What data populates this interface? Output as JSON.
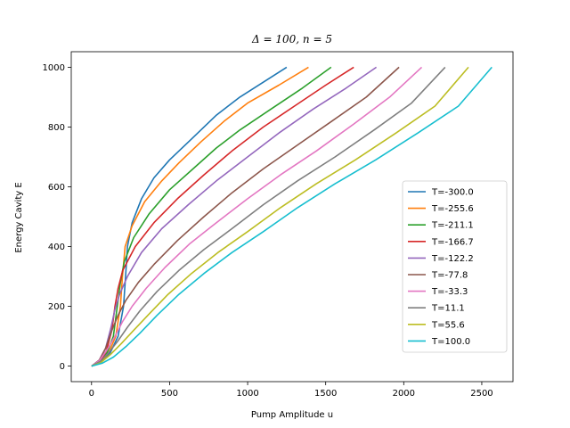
{
  "chart_data": {
    "type": "line",
    "title": "Δ = 100, n = 5",
    "xlabel": "Pump Amplitude u",
    "ylabel": "Energy Cavity E",
    "xlim": [
      -130,
      2700
    ],
    "ylim": [
      -52,
      1052
    ],
    "xticks": [
      0,
      500,
      1000,
      1500,
      2000,
      2500
    ],
    "yticks": [
      0,
      200,
      400,
      600,
      800,
      1000
    ],
    "grid": false,
    "legend_position": "lower-right",
    "series": [
      {
        "name": "T=-300.0",
        "color": "#1f77b4",
        "x": [
          0,
          60,
          120,
          170,
          205,
          218,
          230,
          260,
          320,
          400,
          500,
          640,
          800,
          950,
          1100,
          1250
        ],
        "y": [
          0,
          15,
          45,
          100,
          200,
          300,
          400,
          480,
          560,
          630,
          690,
          760,
          840,
          900,
          950,
          1000
        ]
      },
      {
        "name": "T=-255.6",
        "color": "#ff7f0e",
        "x": [
          0,
          60,
          110,
          155,
          185,
          198,
          215,
          260,
          340,
          450,
          560,
          700,
          850,
          1000,
          1200,
          1390
        ],
        "y": [
          0,
          15,
          45,
          100,
          200,
          300,
          400,
          470,
          550,
          620,
          680,
          750,
          820,
          880,
          940,
          1000
        ]
      },
      {
        "name": "T=-211.1",
        "color": "#2ca02c",
        "x": [
          0,
          60,
          100,
          140,
          165,
          185,
          210,
          270,
          370,
          500,
          650,
          800,
          950,
          1150,
          1350,
          1535
        ],
        "y": [
          0,
          15,
          45,
          100,
          200,
          280,
          350,
          430,
          510,
          590,
          660,
          730,
          790,
          860,
          930,
          1000
        ]
      },
      {
        "name": "T=-166.7",
        "color": "#d62728",
        "x": [
          0,
          55,
          95,
          130,
          150,
          170,
          200,
          280,
          400,
          550,
          720,
          900,
          1100,
          1300,
          1500,
          1680
        ],
        "y": [
          0,
          15,
          50,
          120,
          200,
          260,
          320,
          400,
          480,
          560,
          640,
          720,
          800,
          870,
          940,
          1000
        ]
      },
      {
        "name": "T=-122.2",
        "color": "#9467bd",
        "x": [
          0,
          50,
          90,
          125,
          150,
          180,
          230,
          320,
          450,
          620,
          800,
          1000,
          1200,
          1420,
          1630,
          1825
        ],
        "y": [
          0,
          20,
          60,
          130,
          190,
          240,
          300,
          380,
          460,
          540,
          620,
          700,
          780,
          860,
          930,
          1000
        ]
      },
      {
        "name": "T=-77.8",
        "color": "#8c564b",
        "x": [
          0,
          50,
          90,
          130,
          170,
          220,
          300,
          400,
          550,
          720,
          900,
          1100,
          1320,
          1540,
          1760,
          1970
        ],
        "y": [
          0,
          20,
          60,
          120,
          170,
          220,
          280,
          340,
          420,
          500,
          580,
          660,
          740,
          820,
          900,
          1000
        ]
      },
      {
        "name": "T=-33.3",
        "color": "#e377c2",
        "x": [
          0,
          50,
          100,
          150,
          200,
          260,
          350,
          470,
          630,
          800,
          1000,
          1210,
          1440,
          1680,
          1910,
          2115
        ],
        "y": [
          0,
          18,
          55,
          100,
          150,
          200,
          260,
          330,
          410,
          480,
          560,
          640,
          720,
          810,
          900,
          1000
        ]
      },
      {
        "name": "T=11.1",
        "color": "#7f7f7f",
        "x": [
          0,
          55,
          110,
          170,
          230,
          310,
          420,
          560,
          720,
          900,
          1100,
          1320,
          1560,
          1810,
          2050,
          2265
        ],
        "y": [
          0,
          15,
          45,
          85,
          130,
          185,
          250,
          320,
          390,
          460,
          540,
          620,
          700,
          790,
          880,
          1000
        ]
      },
      {
        "name": "T=55.6",
        "color": "#bcbd22",
        "x": [
          0,
          60,
          120,
          190,
          270,
          370,
          490,
          640,
          810,
          1000,
          1210,
          1440,
          1690,
          1950,
          2200,
          2415
        ],
        "y": [
          0,
          12,
          38,
          75,
          120,
          175,
          240,
          310,
          380,
          450,
          530,
          610,
          690,
          780,
          870,
          1000
        ]
      },
      {
        "name": "T=100.0",
        "color": "#17becf",
        "x": [
          0,
          70,
          140,
          220,
          310,
          420,
          560,
          720,
          900,
          1100,
          1320,
          1560,
          1820,
          2090,
          2350,
          2565
        ],
        "y": [
          0,
          10,
          30,
          65,
          110,
          170,
          240,
          310,
          380,
          450,
          530,
          610,
          690,
          780,
          870,
          1000
        ]
      }
    ]
  }
}
